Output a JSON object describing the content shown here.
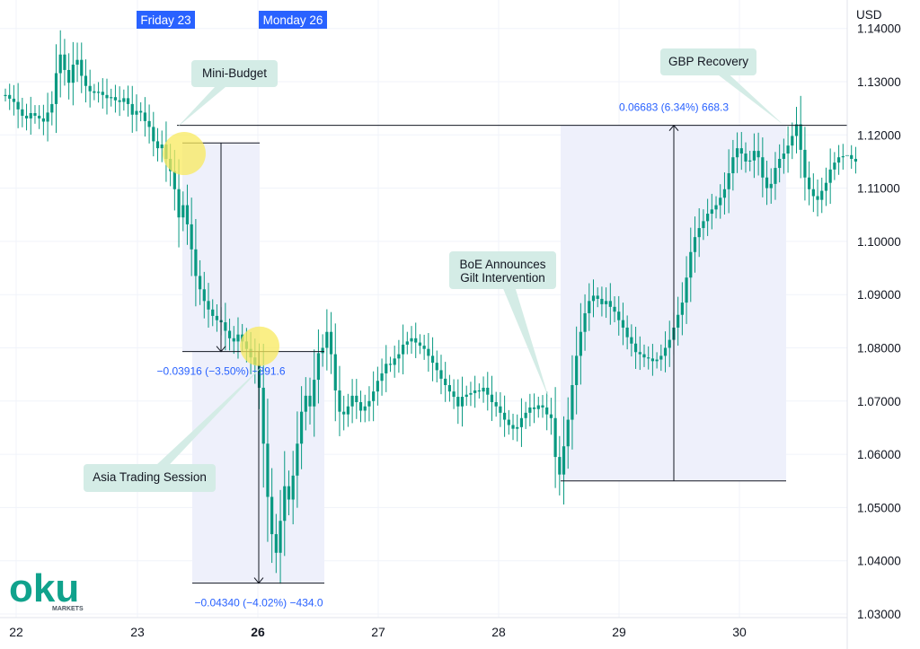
{
  "chart_data": {
    "type": "candlestick",
    "currency": "USD",
    "y_ticks": [
      "1.14000",
      "1.13000",
      "1.12000",
      "1.11000",
      "1.10000",
      "1.09000",
      "1.08000",
      "1.07000",
      "1.06000",
      "1.05000",
      "1.04000",
      "1.03000"
    ],
    "ylim": [
      1.028,
      1.142
    ],
    "x_ticks": [
      {
        "label": "22",
        "bold": false
      },
      {
        "label": "23",
        "bold": false
      },
      {
        "label": "26",
        "bold": true
      },
      {
        "label": "27",
        "bold": false
      },
      {
        "label": "28",
        "bold": false
      },
      {
        "label": "29",
        "bold": false
      },
      {
        "label": "30",
        "bold": false
      }
    ],
    "series": [
      {
        "values": [
          1.1275,
          1.1268,
          1.1262,
          1.1248,
          1.1236,
          1.1231,
          1.1241,
          1.1236,
          1.1231,
          1.1225,
          1.1242,
          1.1258,
          1.1316,
          1.1351,
          1.1322,
          1.1298,
          1.1332,
          1.1341,
          1.1311,
          1.1292,
          1.1282,
          1.1279,
          1.1281,
          1.1275,
          1.1269,
          1.1271,
          1.1265,
          1.1262,
          1.1269,
          1.1258,
          1.1238,
          1.1245,
          1.1242,
          1.1226,
          1.1215,
          1.1188,
          1.1175,
          1.1182,
          1.1155,
          1.1132,
          1.1098,
          1.1045,
          1.1068,
          1.1032,
          1.0985,
          1.0935,
          1.091,
          1.0888,
          1.0872,
          1.086,
          1.0852,
          1.0848,
          1.0832,
          1.0818,
          1.0812,
          1.0825,
          1.0812,
          1.0798,
          1.0782,
          1.0768,
          1.0725,
          1.062,
          1.052,
          1.045,
          1.0415,
          1.0475,
          1.054,
          1.0515,
          1.056,
          1.062,
          1.068,
          1.071,
          1.069,
          1.074,
          1.079,
          1.08,
          1.083,
          1.0788,
          1.072,
          1.068,
          1.0675,
          1.069,
          1.071,
          1.0698,
          1.0682,
          1.069,
          1.07,
          1.0718,
          1.0738,
          1.0752,
          1.077,
          1.0768,
          1.078,
          1.0788,
          1.0806,
          1.0812,
          1.0818,
          1.081,
          1.0804,
          1.0798,
          1.0785,
          1.0772,
          1.0758,
          1.0742,
          1.073,
          1.0718,
          1.0708,
          1.069,
          1.0708,
          1.0712,
          1.0715,
          1.072,
          1.0718,
          1.0725,
          1.0712,
          1.0698,
          1.069,
          1.0678,
          1.0665,
          1.0655,
          1.0648,
          1.0651,
          1.0668,
          1.0678,
          1.0688,
          1.0685,
          1.0692,
          1.0688,
          1.0675,
          1.0668,
          1.0595,
          1.0562,
          1.0615,
          1.0665,
          1.073,
          1.0785,
          1.083,
          1.0865,
          1.0888,
          1.0898,
          1.0892,
          1.0882,
          1.0888,
          1.0877,
          1.0868,
          1.0852,
          1.0838,
          1.082,
          1.0808,
          1.0792,
          1.0788,
          1.0782,
          1.078,
          1.0775,
          1.0778,
          1.0785,
          1.08,
          1.0815,
          1.0838,
          1.0862,
          1.0885,
          1.0932,
          1.098,
          1.1008,
          1.1025,
          1.1038,
          1.1052,
          1.106,
          1.1068,
          1.1082,
          1.1098,
          1.1128,
          1.1158,
          1.1175,
          1.1165,
          1.115,
          1.1152,
          1.117,
          1.1158,
          1.112,
          1.11,
          1.1108,
          1.1138,
          1.1155,
          1.1165,
          1.118,
          1.1198,
          1.122,
          1.1172,
          1.112,
          1.1098,
          1.1085,
          1.1078,
          1.1095,
          1.111,
          1.1135,
          1.1148,
          1.1158,
          1.116,
          1.1162,
          1.1155,
          1.115
        ]
      }
    ],
    "annotations": {
      "day_tags": [
        "Friday 23",
        "Monday 26"
      ],
      "callouts": [
        "Mini-Budget",
        "Asia Trading Session",
        "BoE Announces",
        "Gilt Intervention",
        "GBP Recovery"
      ],
      "measures": [
        {
          "text": "−0.03916 (−3.50%) −391.6",
          "from": 1.1185,
          "to": 1.0793
        },
        {
          "text": "−0.04340 (−4.02%) −434.0",
          "from": 1.0793,
          "to": 1.0358
        },
        {
          "text": "0.06683 (6.34%) 668.3",
          "from": 1.055,
          "to": 1.1218
        }
      ],
      "reference_level": 1.1218
    },
    "colors": {
      "candle": "#089981",
      "measure_bg": "#eef0fb",
      "highlight": "#f8ea5e",
      "accent": "#2962ff"
    },
    "grid": true,
    "logo": {
      "text": "oku",
      "subtext": "MARKETS",
      "color": "#10a28c"
    }
  }
}
